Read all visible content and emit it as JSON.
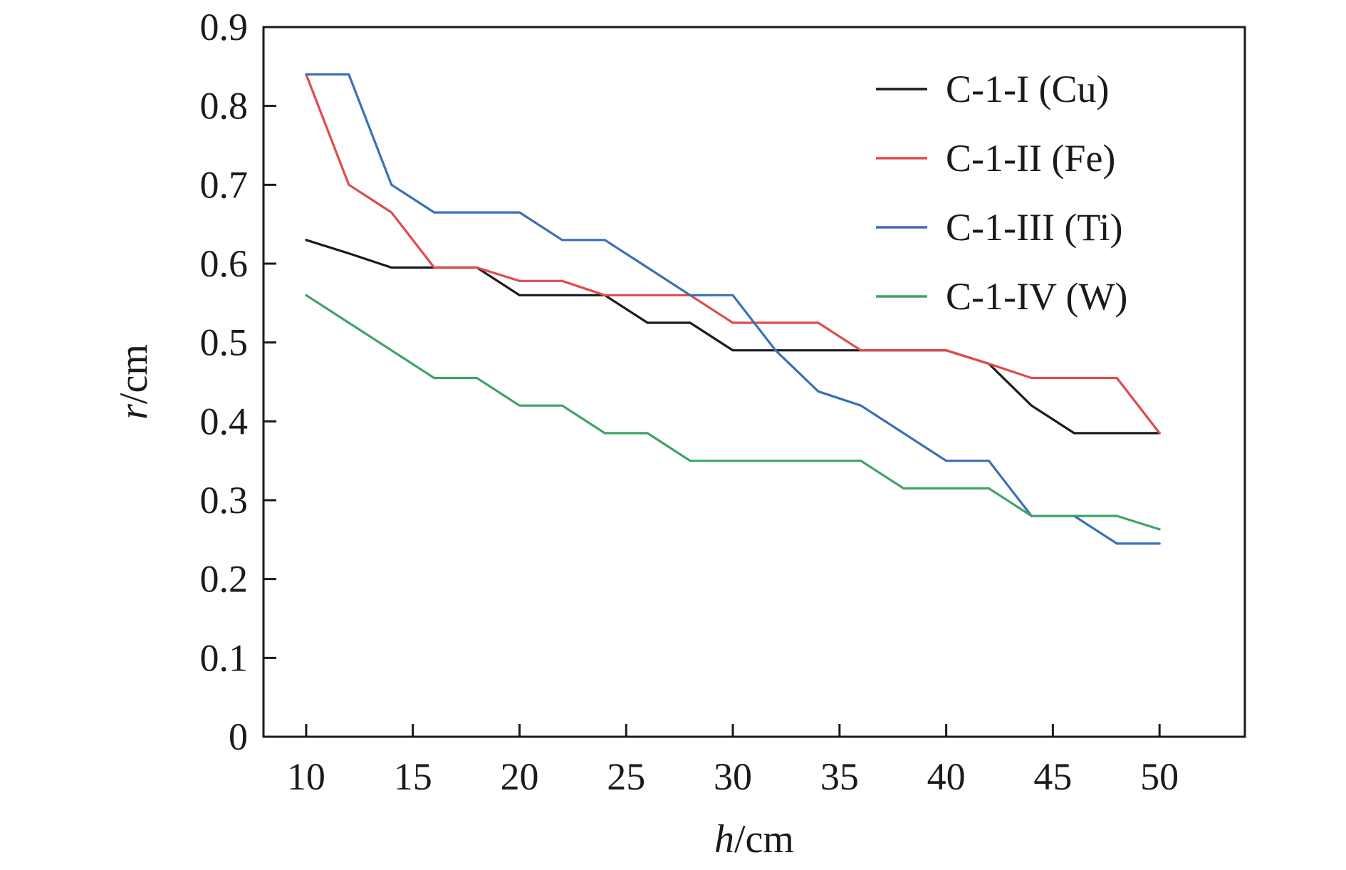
{
  "chart_data": {
    "type": "line",
    "xlabel_var": "h",
    "xlabel_unit": "/cm",
    "ylabel_var": "r",
    "ylabel_unit": "/cm",
    "xlim": [
      8,
      54
    ],
    "ylim": [
      0,
      0.9
    ],
    "xticks": [
      10,
      15,
      20,
      25,
      30,
      35,
      40,
      45,
      50
    ],
    "yticks": [
      0,
      0.1,
      0.2,
      0.3,
      0.4,
      0.5,
      0.6,
      0.7,
      0.8,
      0.9
    ],
    "ytick_labels": [
      "0",
      "0.1",
      "0.2",
      "0.3",
      "0.4",
      "0.5",
      "0.6",
      "0.7",
      "0.8",
      "0.9"
    ],
    "grid": false,
    "legend_position": "top-right",
    "x": [
      10,
      12,
      14,
      16,
      18,
      20,
      22,
      24,
      26,
      28,
      30,
      32,
      34,
      36,
      38,
      40,
      42,
      44,
      46,
      48,
      50
    ],
    "series": [
      {
        "name": "C-1-I (Cu)",
        "color": "#1a1a1a",
        "values": [
          0.63,
          0.613,
          0.595,
          0.595,
          0.595,
          0.56,
          0.56,
          0.56,
          0.525,
          0.525,
          0.49,
          0.49,
          0.49,
          0.49,
          0.49,
          0.49,
          0.473,
          0.42,
          0.385,
          0.385,
          0.385
        ]
      },
      {
        "name": "C-1-II (Fe)",
        "color": "#e04a4f",
        "values": [
          0.84,
          0.7,
          0.665,
          0.595,
          0.595,
          0.578,
          0.578,
          0.56,
          0.56,
          0.56,
          0.525,
          0.525,
          0.525,
          0.49,
          0.49,
          0.49,
          0.473,
          0.455,
          0.455,
          0.455,
          0.385
        ]
      },
      {
        "name": "C-1-III (Ti)",
        "color": "#3a6fb8",
        "values": [
          0.84,
          0.84,
          0.7,
          0.665,
          0.665,
          0.665,
          0.63,
          0.63,
          0.595,
          0.56,
          0.56,
          0.49,
          0.438,
          0.42,
          0.385,
          0.35,
          0.35,
          0.28,
          0.28,
          0.245,
          0.245
        ]
      },
      {
        "name": "C-1-IV (W)",
        "color": "#3da46a",
        "values": [
          0.56,
          0.525,
          0.49,
          0.455,
          0.455,
          0.42,
          0.42,
          0.385,
          0.385,
          0.35,
          0.35,
          0.35,
          0.35,
          0.35,
          0.315,
          0.315,
          0.315,
          0.28,
          0.28,
          0.28,
          0.263
        ]
      }
    ]
  }
}
